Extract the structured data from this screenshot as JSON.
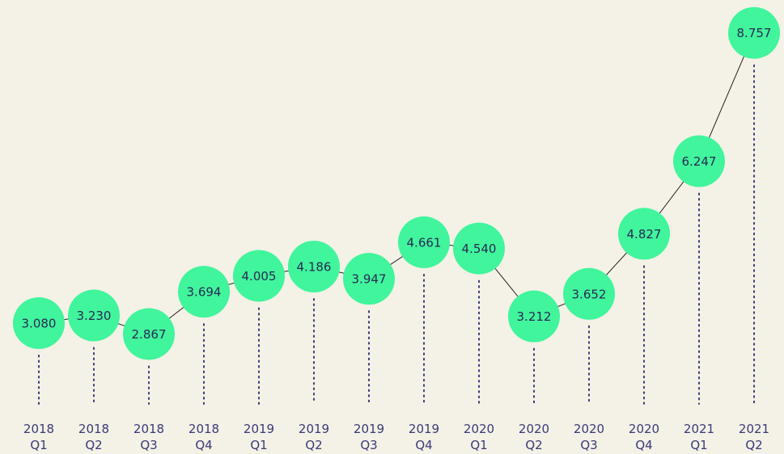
{
  "chart_data": {
    "type": "line",
    "categories": [
      "2018 Q1",
      "2018 Q2",
      "2018 Q3",
      "2018 Q4",
      "2019 Q1",
      "2019 Q2",
      "2019 Q3",
      "2019 Q4",
      "2020 Q1",
      "2020 Q2",
      "2020 Q3",
      "2020 Q4",
      "2021 Q1",
      "2021 Q2"
    ],
    "values": [
      3.08,
      3.23,
      2.867,
      3.694,
      4.005,
      4.186,
      3.947,
      4.661,
      4.54,
      3.212,
      3.652,
      4.827,
      6.247,
      8.757
    ],
    "value_labels": [
      "3.080",
      "3.230",
      "2.867",
      "3.694",
      "4.005",
      "4.186",
      "3.947",
      "4.661",
      "4.540",
      "3.212",
      "3.652",
      "4.827",
      "6.247",
      "8.757"
    ],
    "color": "#40f59c",
    "ylim": [
      1.5,
      9.4
    ]
  }
}
